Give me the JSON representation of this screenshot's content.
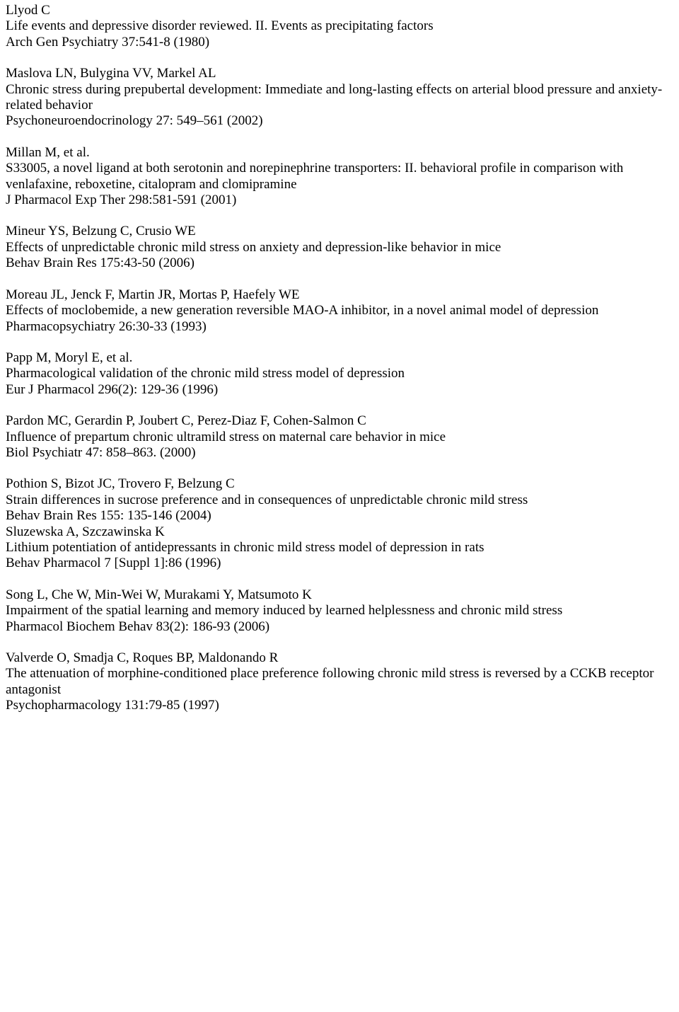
{
  "refs": [
    {
      "lines": [
        "Llyod C",
        "Life events and depressive disorder reviewed. II. Events as precipitating factors",
        "Arch Gen Psychiatry 37:541-8 (1980)"
      ]
    },
    {
      "lines": [
        "Maslova LN, Bulygina VV, Markel AL",
        "Chronic stress during prepubertal development: Immediate and long-lasting effects on arterial blood pressure and anxiety-related behavior",
        "Psychoneuroendocrinology 27: 549–561 (2002)"
      ]
    },
    {
      "lines": [
        "Millan M, et al.",
        "S33005, a novel ligand at both serotonin and norepinephrine transporters: II. behavioral profile in comparison with venlafaxine, reboxetine, citalopram and clomipramine",
        "J Pharmacol Exp Ther 298:581-591 (2001)"
      ]
    },
    {
      "lines": [
        "Mineur YS, Belzung C, Crusio WE",
        "Effects of unpredictable chronic mild stress on anxiety and depression-like behavior in mice",
        "Behav Brain Res 175:43-50 (2006)"
      ]
    },
    {
      "lines": [
        "Moreau JL, Jenck F, Martin JR, Mortas P, Haefely WE",
        "Effects of moclobemide, a new generation reversible MAO-A inhibitor, in a novel animal model of depression",
        "Pharmacopsychiatry 26:30-33 (1993)"
      ]
    },
    {
      "lines": [
        "Papp M,  Moryl E, et al.",
        "Pharmacological validation of the chronic mild stress model of depression",
        "Eur J Pharmacol 296(2): 129-36 (1996)"
      ]
    },
    {
      "lines": [
        "Pardon MC, Gerardin P, Joubert C, Perez-Diaz F, Cohen-Salmon C",
        "Influence of prepartum chronic ultramild stress on maternal care behavior in mice",
        "Biol Psychiatr 47: 858–863. (2000)"
      ]
    },
    {
      "lines": [
        "Pothion S, Bizot JC, Trovero F, Belzung C",
        "Strain differences in sucrose preference and in consequences of unpredictable chronic mild stress",
        "Behav Brain Res 155: 135-146 (2004)",
        "Sluzewska A, Szczawinska K",
        "Lithium potentiation of antidepressants in chronic mild stress model of depression in rats",
        "Behav Pharmacol 7 [Suppl 1]:86 (1996)"
      ]
    },
    {
      "lines": [
        "Song L, Che W, Min-Wei W, Murakami Y, Matsumoto K",
        "Impairment of the spatial learning and memory induced by learned helplessness and chronic mild stress",
        "Pharmacol Biochem Behav 83(2): 186-93 (2006)"
      ]
    },
    {
      "lines": [
        "Valverde O, Smadja C, Roques BP, Maldonando R",
        "The attenuation of morphine-conditioned place preference following chronic mild stress is reversed by a CCKB receptor antagonist",
        "Psychopharmacology 131:79-85 (1997)"
      ]
    }
  ]
}
